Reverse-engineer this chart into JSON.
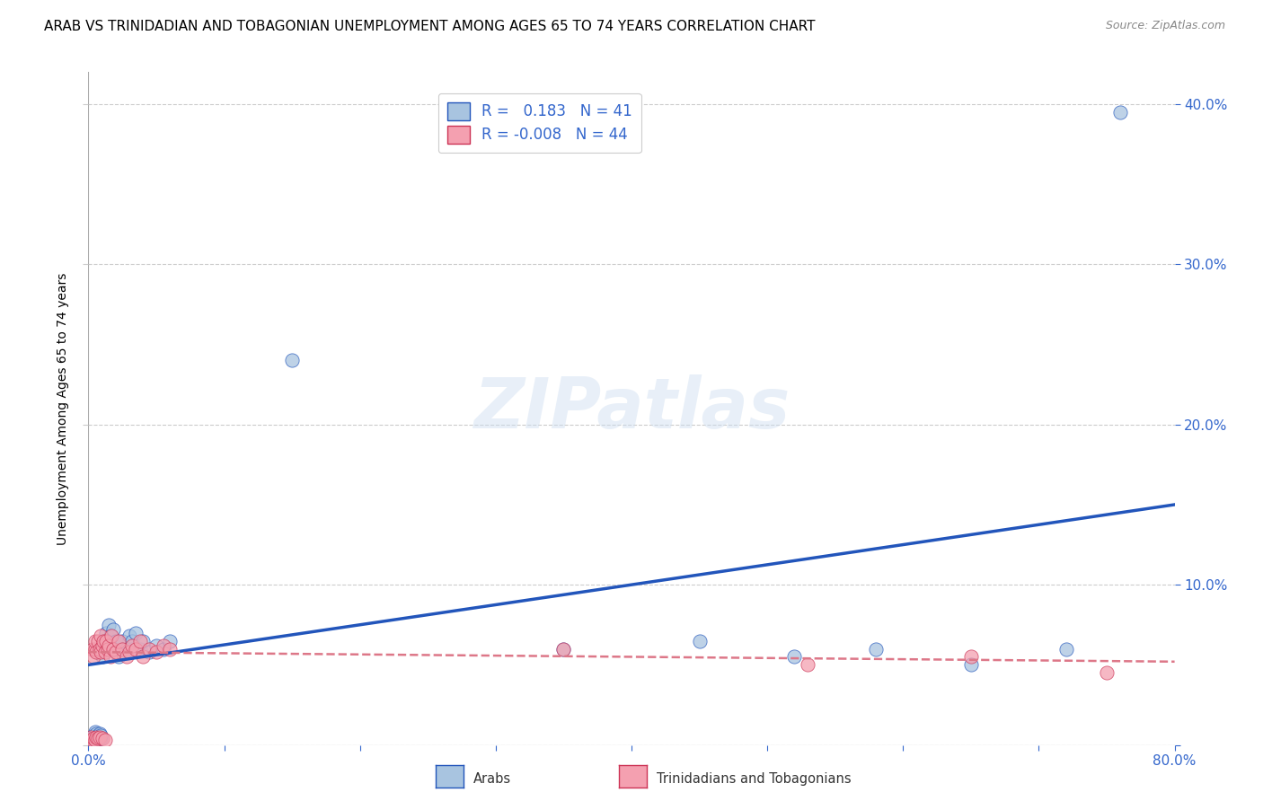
{
  "title": "ARAB VS TRINIDADIAN AND TOBAGONIAN UNEMPLOYMENT AMONG AGES 65 TO 74 YEARS CORRELATION CHART",
  "source": "Source: ZipAtlas.com",
  "ylabel": "Unemployment Among Ages 65 to 74 years",
  "xlim": [
    0.0,
    0.8
  ],
  "ylim": [
    0.0,
    0.42
  ],
  "yticks": [
    0.0,
    0.1,
    0.2,
    0.3,
    0.4
  ],
  "ytick_right_labels": [
    "",
    "10.0%",
    "20.0%",
    "30.0%",
    "40.0%"
  ],
  "xticks": [
    0.0,
    0.1,
    0.2,
    0.3,
    0.4,
    0.5,
    0.6,
    0.7,
    0.8
  ],
  "xtick_labels": [
    "0.0%",
    "",
    "",
    "",
    "",
    "",
    "",
    "",
    "80.0%"
  ],
  "arab_R": 0.183,
  "arab_N": 41,
  "tnt_R": -0.008,
  "tnt_N": 44,
  "arab_color": "#a8c4e0",
  "tnt_color": "#f4a0b0",
  "arab_line_color": "#2255bb",
  "tnt_line_color": "#dd7788",
  "watermark": "ZIPatlas",
  "arab_x": [
    0.002,
    0.003,
    0.004,
    0.005,
    0.005,
    0.006,
    0.006,
    0.007,
    0.007,
    0.008,
    0.008,
    0.009,
    0.009,
    0.01,
    0.011,
    0.012,
    0.013,
    0.015,
    0.016,
    0.018,
    0.02,
    0.022,
    0.025,
    0.028,
    0.03,
    0.032,
    0.035,
    0.038,
    0.04,
    0.045,
    0.05,
    0.055,
    0.06,
    0.15,
    0.35,
    0.45,
    0.52,
    0.58,
    0.65,
    0.72,
    0.76
  ],
  "arab_y": [
    0.005,
    0.003,
    0.006,
    0.004,
    0.008,
    0.005,
    0.007,
    0.003,
    0.006,
    0.005,
    0.007,
    0.004,
    0.006,
    0.055,
    0.065,
    0.06,
    0.07,
    0.075,
    0.068,
    0.072,
    0.065,
    0.055,
    0.065,
    0.06,
    0.068,
    0.065,
    0.07,
    0.06,
    0.065,
    0.058,
    0.062,
    0.06,
    0.065,
    0.24,
    0.06,
    0.065,
    0.055,
    0.06,
    0.05,
    0.06,
    0.395
  ],
  "tnt_x": [
    0.002,
    0.003,
    0.003,
    0.004,
    0.004,
    0.005,
    0.005,
    0.005,
    0.006,
    0.006,
    0.007,
    0.007,
    0.008,
    0.008,
    0.009,
    0.009,
    0.01,
    0.01,
    0.011,
    0.012,
    0.012,
    0.013,
    0.014,
    0.015,
    0.016,
    0.017,
    0.018,
    0.02,
    0.022,
    0.025,
    0.028,
    0.03,
    0.032,
    0.035,
    0.038,
    0.04,
    0.045,
    0.05,
    0.055,
    0.06,
    0.35,
    0.53,
    0.65,
    0.75
  ],
  "tnt_y": [
    0.005,
    0.003,
    0.06,
    0.004,
    0.055,
    0.003,
    0.06,
    0.065,
    0.005,
    0.058,
    0.004,
    0.065,
    0.005,
    0.06,
    0.058,
    0.068,
    0.004,
    0.062,
    0.065,
    0.003,
    0.058,
    0.065,
    0.06,
    0.062,
    0.055,
    0.068,
    0.06,
    0.058,
    0.065,
    0.06,
    0.055,
    0.058,
    0.062,
    0.06,
    0.065,
    0.055,
    0.06,
    0.058,
    0.062,
    0.06,
    0.06,
    0.05,
    0.055,
    0.045
  ],
  "arab_line_x0": 0.0,
  "arab_line_y0": 0.05,
  "arab_line_x1": 0.8,
  "arab_line_y1": 0.15,
  "tnt_line_x0": 0.0,
  "tnt_line_y0": 0.058,
  "tnt_line_x1": 0.8,
  "tnt_line_y1": 0.052
}
